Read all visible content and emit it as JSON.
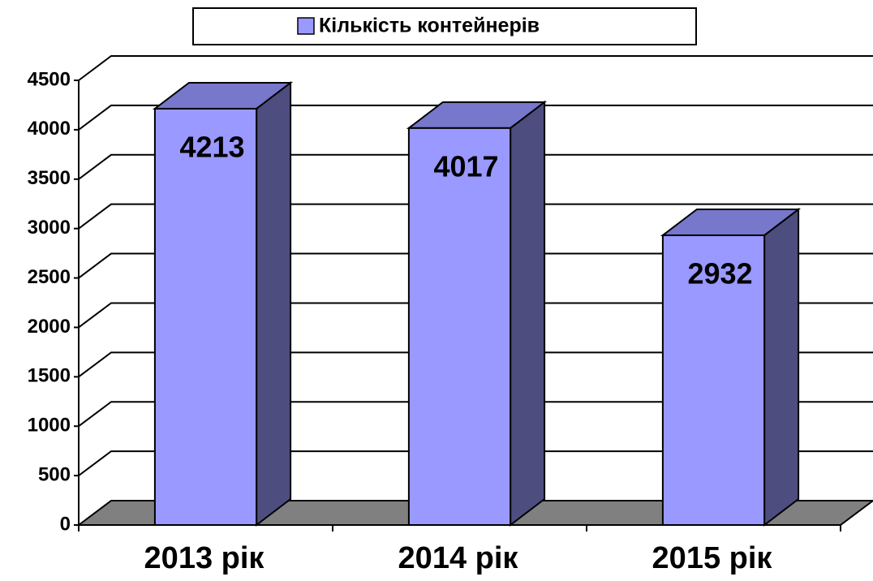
{
  "chart_data": {
    "type": "bar3d",
    "legend": "Кількість контейнерів",
    "categories": [
      "2013 рік",
      "2014 рік",
      "2015 рік"
    ],
    "series": [
      {
        "name": "Кількість контейнерів",
        "color": "#9999ff",
        "values": [
          4213,
          4017,
          2932
        ]
      }
    ],
    "ylim": [
      0,
      4500
    ],
    "yticks": [
      0,
      500,
      1000,
      1500,
      2000,
      2500,
      3000,
      3500,
      4000,
      4500
    ],
    "grid": true,
    "legend_position": "top"
  }
}
